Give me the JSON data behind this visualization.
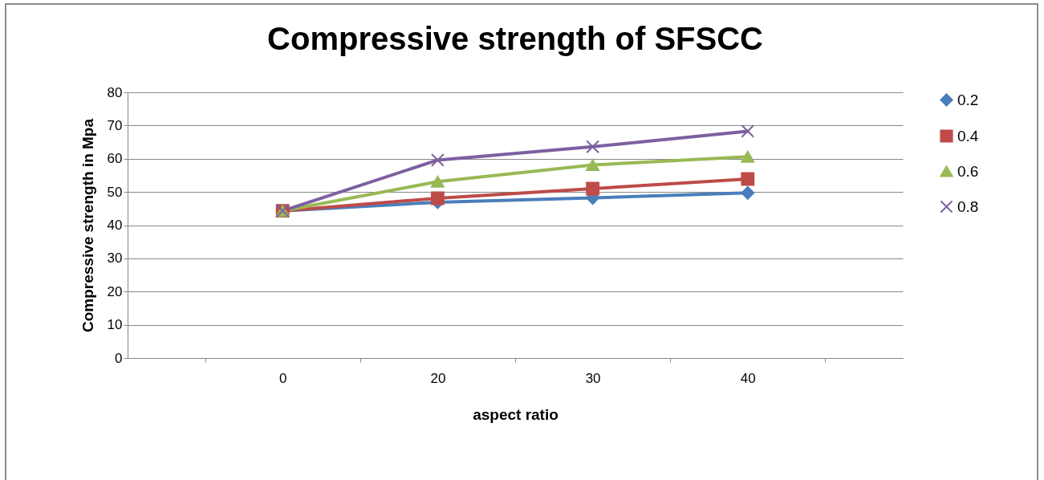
{
  "chart_data": {
    "type": "line",
    "title": "Compressive strength of SFSCC",
    "xlabel": "aspect ratio",
    "ylabel": "Compressive strength in Mpa",
    "categories": [
      "0",
      "20",
      "30",
      "40"
    ],
    "series": [
      {
        "name": "0.2",
        "color": "#4a7ebb",
        "marker": "diamond",
        "values": [
          44.3,
          46.9,
          48.2,
          49.7
        ]
      },
      {
        "name": "0.4",
        "color": "#be4b48",
        "marker": "square",
        "values": [
          44.3,
          48.1,
          51.0,
          53.9
        ]
      },
      {
        "name": "0.6",
        "color": "#98b954",
        "marker": "triangle",
        "values": [
          44.3,
          53.1,
          58.1,
          60.6
        ]
      },
      {
        "name": "0.8",
        "color": "#7d60a0",
        "marker": "cross",
        "values": [
          44.3,
          59.6,
          63.6,
          68.3
        ]
      }
    ],
    "ylim": [
      0,
      80
    ],
    "yticks": [
      0,
      10,
      20,
      30,
      40,
      50,
      60,
      70,
      80
    ],
    "grid": "y",
    "legend": "right"
  }
}
